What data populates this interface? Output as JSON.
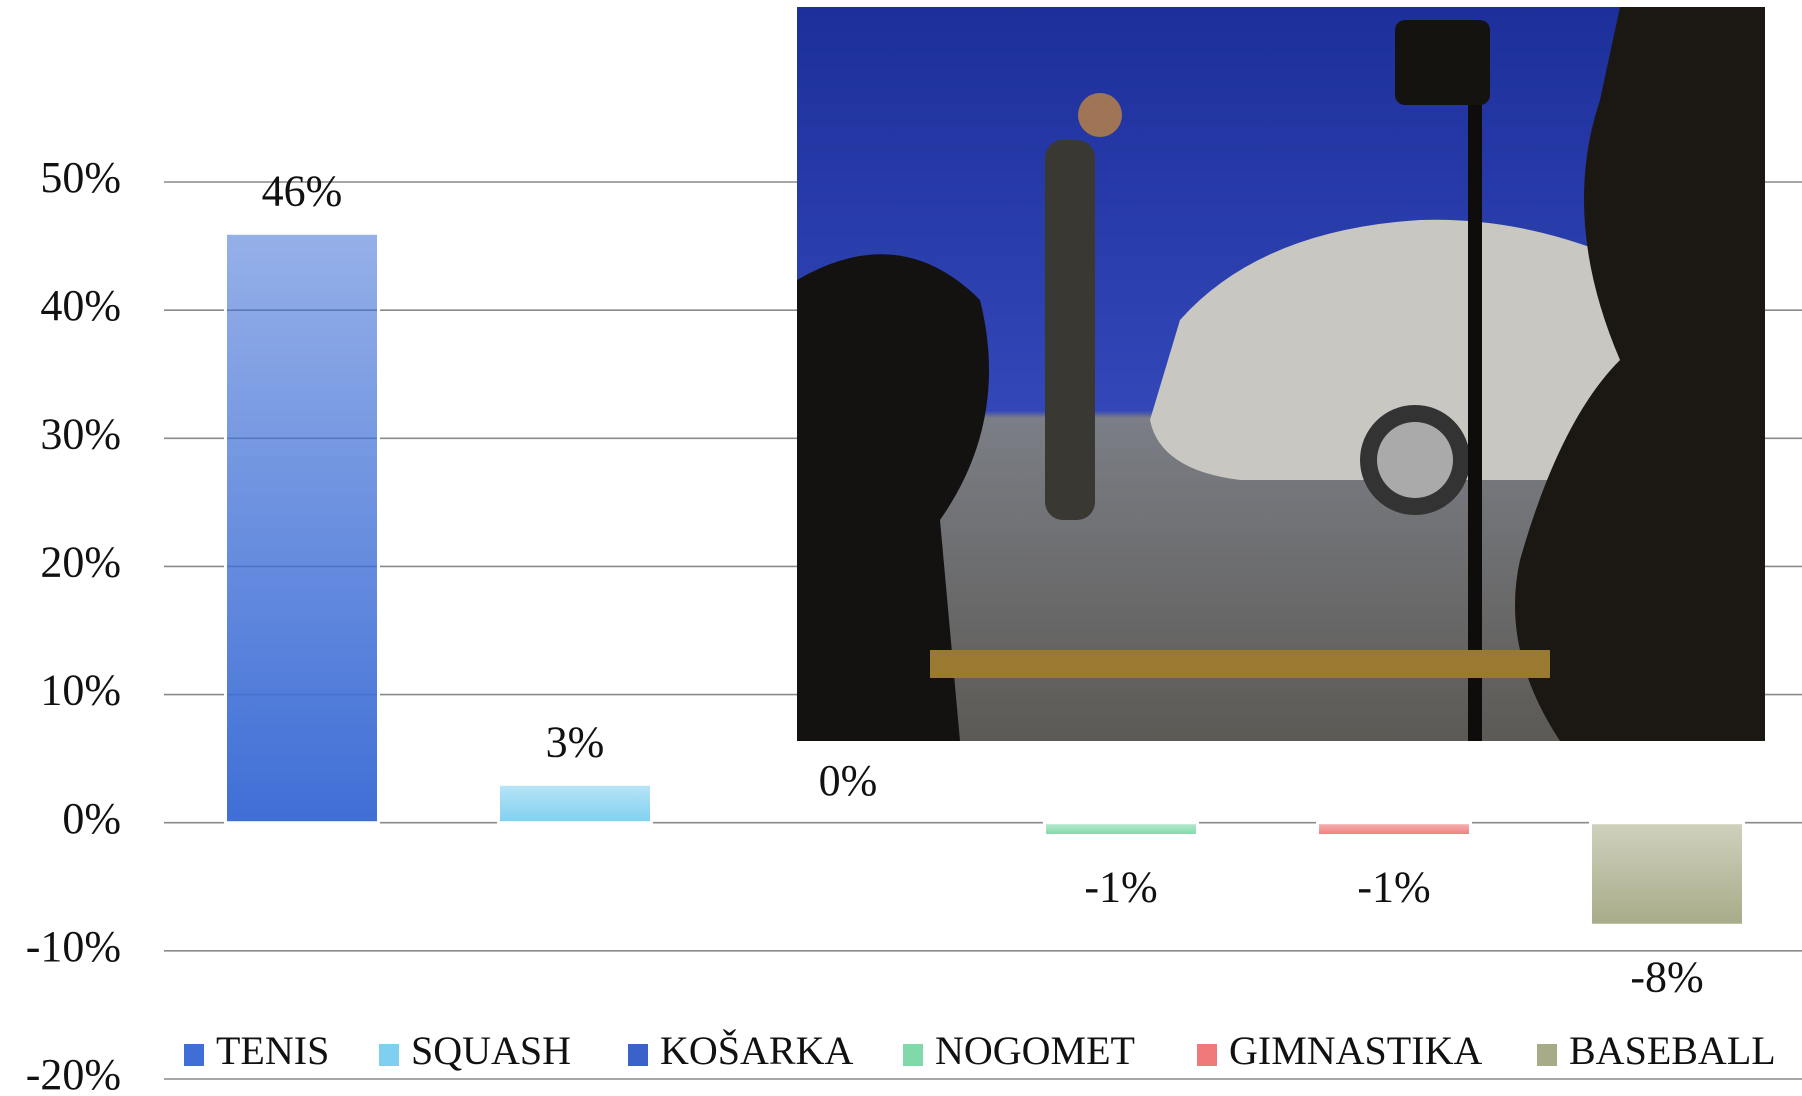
{
  "chart_data": {
    "type": "bar",
    "categories": [
      null
    ],
    "series": [
      {
        "name": "TENIS",
        "color": "#3f6fd6",
        "values": [
          46
        ],
        "value_labels": [
          "46%"
        ]
      },
      {
        "name": "SQUASH",
        "color": "#7fd0f0",
        "values": [
          3
        ],
        "value_labels": [
          "3%"
        ]
      },
      {
        "name": "KOŠARKA",
        "color": "#3a62c8",
        "values": [
          0
        ],
        "value_labels": [
          "0%"
        ]
      },
      {
        "name": "NOGOMET",
        "color": "#7fd9a8",
        "values": [
          -1
        ],
        "value_labels": [
          "-1%"
        ]
      },
      {
        "name": "GIMNASTIKA",
        "color": "#f07a7a",
        "values": [
          -1
        ],
        "value_labels": [
          "-1%"
        ]
      },
      {
        "name": "BASEBALL",
        "color": "#a8ab88",
        "values": [
          -8
        ],
        "value_labels": [
          "-8%"
        ]
      }
    ],
    "ylim": [
      -20,
      50
    ],
    "yticks": [
      {
        "value": -20,
        "label": "-20%"
      },
      {
        "value": -10,
        "label": "-10%"
      },
      {
        "value": 0,
        "label": "0%"
      },
      {
        "value": 10,
        "label": "10%"
      },
      {
        "value": 20,
        "label": "20%"
      },
      {
        "value": 30,
        "label": "30%"
      },
      {
        "value": 40,
        "label": "40%"
      },
      {
        "value": 50,
        "label": "50%"
      }
    ],
    "grid": true,
    "legend": "bottom"
  }
}
